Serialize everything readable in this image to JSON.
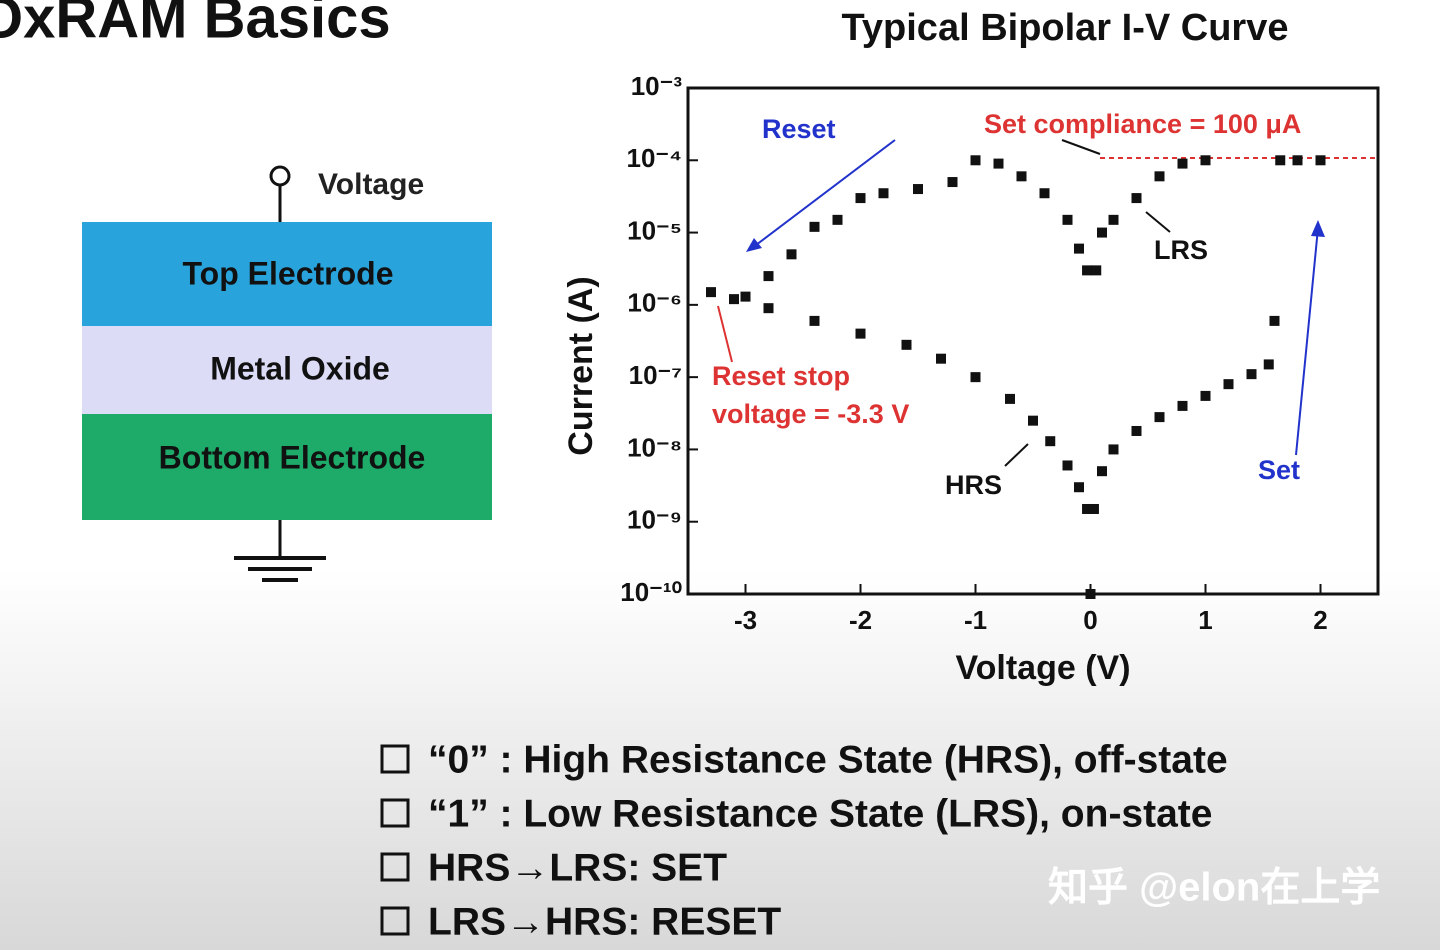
{
  "title": "OxRAM Basics",
  "diagram": {
    "terminal": "Voltage",
    "layers": [
      "Top Electrode",
      "Metal Oxide",
      "Bottom Electrode"
    ]
  },
  "chart_data": {
    "type": "scatter",
    "title": "Typical Bipolar I-V Curve",
    "xlabel": "Voltage (V)",
    "ylabel": "Current (A)",
    "log_y": true,
    "color": "#111111",
    "x": [
      0,
      -0.03,
      -0.1,
      -0.2,
      -0.35,
      -0.5,
      -0.7,
      -1.0,
      -1.3,
      -1.6,
      -2.0,
      -2.4,
      -2.8,
      -3.1,
      -3.3,
      -3.0,
      -2.8,
      -2.6,
      -2.4,
      -2.2,
      -2.0,
      -1.8,
      -1.5,
      -1.2,
      -1.0,
      -0.8,
      -0.6,
      -0.4,
      -0.2,
      -0.1,
      -0.03,
      0.03,
      0.1,
      0.2,
      0.4,
      0.6,
      0.8,
      1.0,
      1.2,
      1.4,
      1.55,
      1.6,
      1.65,
      1.8,
      2.0,
      1.0,
      0.8,
      0.6,
      0.4,
      0.2,
      0.1,
      0.05
    ],
    "values": [
      1e-10,
      1.5e-09,
      3e-09,
      6e-09,
      1.3e-08,
      2.5e-08,
      5e-08,
      1e-07,
      1.8e-07,
      2.8e-07,
      4e-07,
      6e-07,
      9e-07,
      1.2e-06,
      1.5e-06,
      1.3e-06,
      2.5e-06,
      5e-06,
      1.2e-05,
      1.5e-05,
      3e-05,
      3.5e-05,
      4e-05,
      5e-05,
      0.0001,
      9e-05,
      6e-05,
      3.5e-05,
      1.5e-05,
      6e-06,
      3e-06,
      1.5e-09,
      5e-09,
      1e-08,
      1.8e-08,
      2.8e-08,
      4e-08,
      5.5e-08,
      8e-08,
      1.1e-07,
      1.5e-07,
      6e-07,
      0.0001,
      0.0001,
      0.0001,
      0.0001,
      9e-05,
      6e-05,
      3e-05,
      1.5e-05,
      1e-05,
      3e-06
    ],
    "xlim": [
      -3.5,
      2.5
    ],
    "xticks": [
      -3,
      -2,
      -1,
      0,
      1,
      2
    ],
    "ylim": [
      1e-10,
      0.001
    ],
    "yticks": [
      {
        "value": 1e-10,
        "label": "10⁻¹⁰"
      },
      {
        "value": 1e-09,
        "label": "10⁻⁹"
      },
      {
        "value": 1e-08,
        "label": "10⁻⁸"
      },
      {
        "value": 1e-07,
        "label": "10⁻⁷"
      },
      {
        "value": 1e-06,
        "label": "10⁻⁶"
      },
      {
        "value": 1e-05,
        "label": "10⁻⁵"
      },
      {
        "value": 0.0001,
        "label": "10⁻⁴"
      },
      {
        "value": 0.001,
        "label": "10⁻³"
      }
    ],
    "annotations": [
      "Reset",
      "Set compliance = 100 μA",
      "LRS",
      "HRS",
      "Reset stop",
      "voltage = -3.3 V",
      "Set"
    ]
  },
  "bullets": [
    "“0” : High Resistance State (HRS), off-state",
    "“1” : Low Resistance State (LRS), on-state",
    "HRS→LRS: SET",
    "LRS→HRS: RESET"
  ],
  "watermark": "知乎 @elon在上学"
}
